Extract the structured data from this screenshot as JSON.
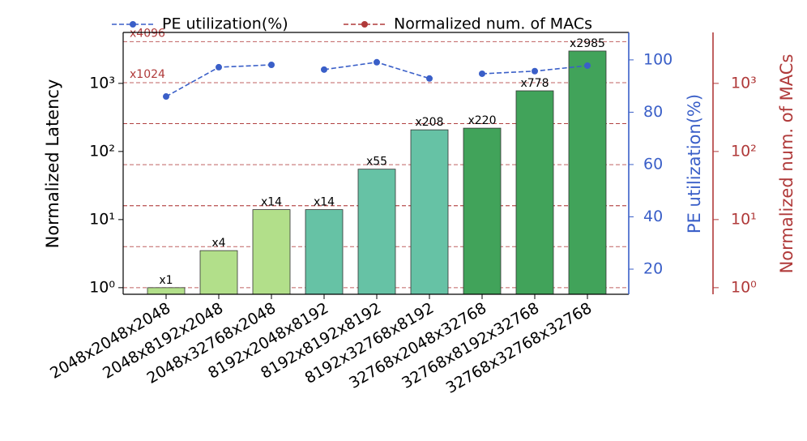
{
  "chart_data": {
    "type": "bar",
    "categories": [
      "2048x2048x2048",
      "2048x8192x2048",
      "2048x32768x2048",
      "8192x2048x8192",
      "8192x8192x8192",
      "8192x32768x8192",
      "32768x2048x32768",
      "32768x8192x32768",
      "32768x32768x32768"
    ],
    "values": [
      1,
      3.5,
      14,
      14,
      55,
      208,
      220,
      778,
      2985
    ],
    "value_labels": [
      "x1",
      "x4",
      "x14",
      "x14",
      "x55",
      "x208",
      "x220",
      "x778",
      "x2985"
    ],
    "colors": [
      "#b2df8a",
      "#b2df8a",
      "#b2df8a",
      "#66c2a5",
      "#66c2a5",
      "#66c2a5",
      "#41a35a",
      "#41a35a",
      "#41a35a"
    ],
    "ylabel": "Normalized Latency",
    "log_y": true,
    "ylim": [
      0.8,
      5600
    ],
    "yticks": [
      {
        "value": 1,
        "label": "10⁰"
      },
      {
        "value": 10,
        "label": "10¹"
      },
      {
        "value": 100,
        "label": "10²"
      },
      {
        "value": 1000,
        "label": "10³"
      }
    ],
    "series": [
      {
        "name": "PE utilization(%)",
        "color": "#3a5fc8",
        "axis": "y2",
        "segment_size": 3,
        "values": [
          86,
          97.2,
          98.1,
          96.3,
          99.1,
          92.9,
          94.7,
          95.7,
          97.8
        ]
      },
      {
        "name": "Normalized num. of MACs",
        "color": "#b03a3a",
        "axis": "y3",
        "values": [
          1,
          4,
          16,
          16,
          64,
          256,
          256,
          1024,
          4096
        ]
      }
    ],
    "annotations": [
      {
        "text": "x1024",
        "series_index": 7
      },
      {
        "text": "x4096",
        "series_index": 8
      }
    ],
    "y2label": "PE utilization(%)",
    "y2lim": [
      10.4,
      110.5
    ],
    "y2ticks": [
      20,
      40,
      60,
      80,
      100
    ],
    "y3label": "Normalized num. of MACs",
    "y3lim": [
      0.8,
      5600
    ],
    "y3ticks": [
      {
        "value": 1,
        "label": "10⁰"
      },
      {
        "value": 10,
        "label": "10¹"
      },
      {
        "value": 100,
        "label": "10²"
      },
      {
        "value": 1000,
        "label": "10³"
      }
    ],
    "legend": "top"
  }
}
